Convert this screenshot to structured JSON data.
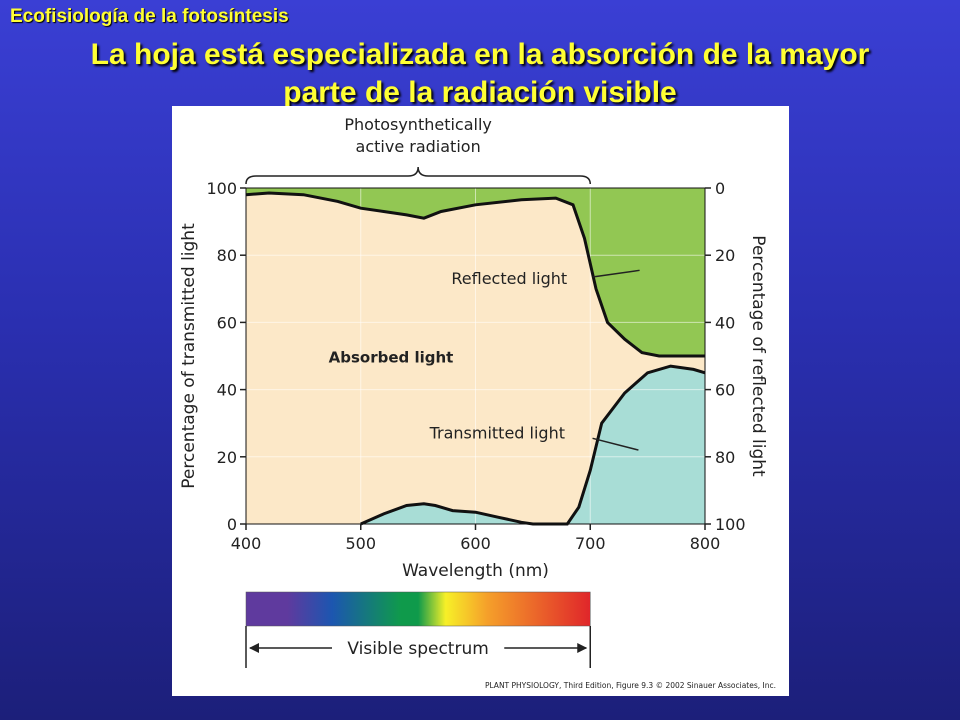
{
  "slide": {
    "kicker": "Ecofisiología de la fotosíntesis",
    "title_line1": "La hoja está especializada en la absorción de la mayor",
    "title_line2": "parte de la radiación visible"
  },
  "chart_data": {
    "type": "area",
    "par_label_line1": "Photosynthetically",
    "par_label_line2": "active radiation",
    "par_range": [
      400,
      700
    ],
    "xlabel": "Wavelength (nm)",
    "ylabel_left": "Percentage of transmitted light",
    "ylabel_right": "Percentage of reflected light",
    "xlim": [
      400,
      800
    ],
    "ylim": [
      0,
      100
    ],
    "xticks": [
      "400",
      "500",
      "600",
      "700",
      "800"
    ],
    "yticks_left": [
      "0",
      "20",
      "40",
      "60",
      "80",
      "100"
    ],
    "yticks_right": [
      "100",
      "80",
      "60",
      "40",
      "20",
      "0"
    ],
    "region_labels": {
      "absorbed": "Absorbed light",
      "reflected": "Reflected light",
      "transmitted": "Transmitted light"
    },
    "reflected_boundary": {
      "x": [
        400,
        420,
        450,
        480,
        500,
        520,
        540,
        555,
        570,
        600,
        640,
        670,
        685,
        695,
        705,
        715,
        730,
        745,
        760,
        780,
        800
      ],
      "y": [
        98,
        98.5,
        98,
        96,
        94,
        93,
        92,
        91,
        93,
        95,
        96.5,
        97,
        95,
        85,
        70,
        60,
        55,
        51,
        50,
        50,
        50
      ]
    },
    "transmitted_boundary": {
      "x": [
        500,
        520,
        540,
        555,
        565,
        580,
        600,
        620,
        640,
        650,
        680,
        690,
        700,
        710,
        730,
        750,
        770,
        790,
        800
      ],
      "y": [
        0,
        3,
        5.5,
        6,
        5.5,
        4,
        3.5,
        2,
        0.5,
        0,
        0,
        5,
        16,
        30,
        39,
        45,
        47,
        46,
        45
      ]
    },
    "colors": {
      "absorbed": "#fce8c8",
      "reflected": "#92c753",
      "transmitted": "#a8ddd6"
    },
    "spectrum_colors": [
      "#5f3a9e",
      "#1c56b0",
      "#0f9a4b",
      "#f7f028",
      "#f5a02a",
      "#e0262a"
    ],
    "spectrum_range": [
      400,
      700
    ],
    "spectrum_label": "Visible spectrum",
    "credit": "PLANT PHYSIOLOGY, Third Edition, Figure 9.3  © 2002 Sinauer Associates, Inc."
  }
}
